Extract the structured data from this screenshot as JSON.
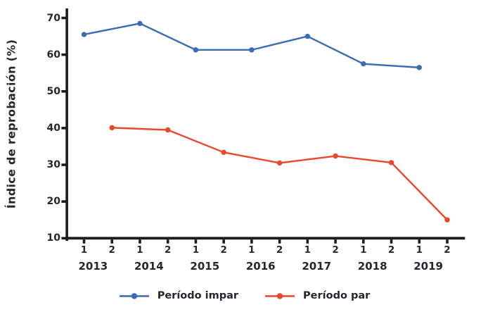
{
  "chart_data": {
    "type": "line",
    "title": "",
    "xlabel": "",
    "ylabel": "Índice de reprobación (%)",
    "ylim": [
      10,
      70
    ],
    "y_ticks": [
      10,
      20,
      30,
      40,
      50,
      60,
      70
    ],
    "x_tick_labels": [
      "1",
      "2",
      "1",
      "2",
      "1",
      "2",
      "1",
      "2",
      "1",
      "2",
      "1",
      "2",
      "1",
      "2"
    ],
    "year_labels": [
      "2013",
      "2014",
      "2015",
      "2016",
      "2017",
      "2018",
      "2019"
    ],
    "grid": "off",
    "legend_position": "bottom",
    "series": [
      {
        "name": "Período impar",
        "color": "#3B6BB4",
        "tick_indices": [
          0,
          2,
          4,
          6,
          8,
          10,
          12
        ],
        "x": [
          "2013-1",
          "2014-1",
          "2015-1",
          "2016-1",
          "2017-1",
          "2018-1",
          "2019-1"
        ],
        "values": [
          65.5,
          68.5,
          61.3,
          61.3,
          65.0,
          57.5,
          56.5
        ]
      },
      {
        "name": "Período par",
        "color": "#E8492D",
        "tick_indices": [
          1,
          3,
          5,
          7,
          9,
          11,
          13
        ],
        "x": [
          "2013-2",
          "2014-2",
          "2015-2",
          "2016-2",
          "2017-2",
          "2018-2",
          "2019-2"
        ],
        "values": [
          40.1,
          39.5,
          33.4,
          30.5,
          32.4,
          30.6,
          15.0
        ]
      }
    ]
  },
  "colors": {
    "axis": "#1c1c1c",
    "text": "#26262e",
    "background": "#ffffff",
    "series_impar": "#3B6BB4",
    "series_par": "#E8492D"
  }
}
